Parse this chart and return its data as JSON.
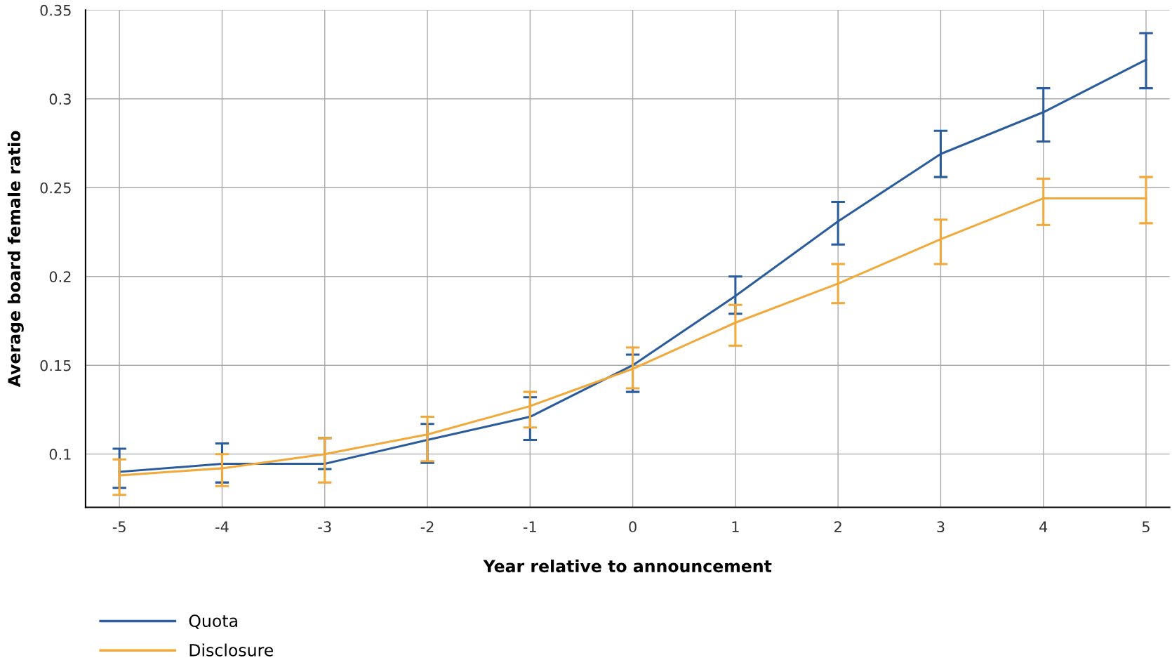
{
  "chart_data": {
    "type": "line",
    "xlabel": "Year relative to announcement",
    "ylabel": "Average board female ratio",
    "x": [
      -5,
      -4,
      -3,
      -2,
      -1,
      0,
      1,
      2,
      3,
      4,
      5
    ],
    "series": [
      {
        "name": "Quota",
        "color": "#2b5c9c",
        "values": [
          0.09,
          0.0945,
          0.0945,
          0.108,
          0.121,
          0.15,
          0.189,
          0.231,
          0.269,
          0.2925,
          0.322
        ],
        "errors": [
          [
            0.081,
            0.103
          ],
          [
            0.084,
            0.106
          ],
          [
            0.0916,
            0.109
          ],
          [
            0.095,
            0.117
          ],
          [
            0.108,
            0.132
          ],
          [
            0.135,
            0.156
          ],
          [
            0.179,
            0.2
          ],
          [
            0.218,
            0.242
          ],
          [
            0.256,
            0.282
          ],
          [
            0.276,
            0.306
          ],
          [
            0.306,
            0.337
          ]
        ]
      },
      {
        "name": "Disclosure",
        "color": "#f2a93b",
        "values": [
          0.088,
          0.092,
          0.1,
          0.111,
          0.127,
          0.148,
          0.174,
          0.196,
          0.221,
          0.244,
          0.244
        ],
        "errors": [
          [
            0.077,
            0.097
          ],
          [
            0.082,
            0.1
          ],
          [
            0.084,
            0.109
          ],
          [
            0.096,
            0.121
          ],
          [
            0.115,
            0.135
          ],
          [
            0.137,
            0.16
          ],
          [
            0.161,
            0.184
          ],
          [
            0.185,
            0.207
          ],
          [
            0.207,
            0.232
          ],
          [
            0.229,
            0.255
          ],
          [
            0.23,
            0.256
          ]
        ]
      }
    ],
    "xlim": [
      -5.33,
      5.23
    ],
    "ylim": [
      0.07,
      0.35
    ],
    "xticks": [
      {
        "value": -5,
        "label": "-5"
      },
      {
        "value": -4,
        "label": "-4"
      },
      {
        "value": -3,
        "label": "-3"
      },
      {
        "value": -2,
        "label": "-2"
      },
      {
        "value": -1,
        "label": "-1"
      },
      0,
      1,
      2,
      3,
      4,
      5
    ],
    "yticks": [
      0.1,
      0.15,
      0.2,
      0.25,
      0.3,
      0.35
    ],
    "grid": true,
    "legend": "bottom left",
    "marker": "none",
    "line_style": "solid"
  }
}
